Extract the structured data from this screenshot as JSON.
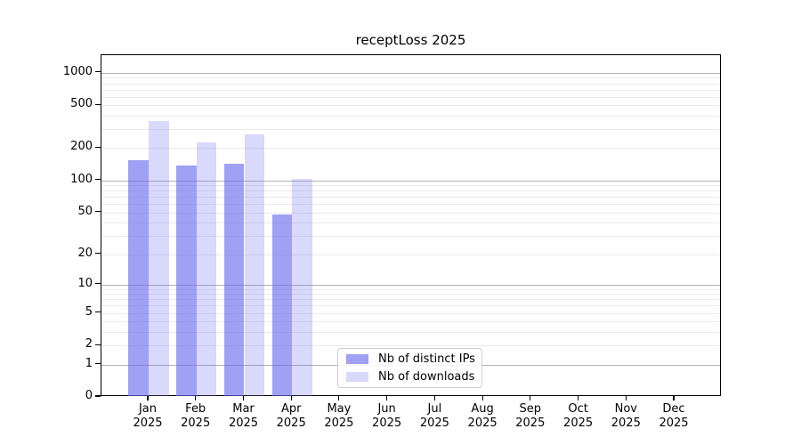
{
  "figure": {
    "title": "receptLoss 2025"
  },
  "colors": {
    "distinct_ips": "rgba(102,102,238,0.62)",
    "downloads": "rgba(102,102,238,0.25)",
    "axis": "#000000",
    "grid_major": "#b2b2b2",
    "grid_minor": "#eaeaea",
    "text": "#000000"
  },
  "legend": {
    "entries": [
      {
        "key": "distinct_ips",
        "label": "Nb of distinct IPs"
      },
      {
        "key": "downloads",
        "label": "Nb of downloads"
      }
    ]
  },
  "chart_data": {
    "type": "bar",
    "title": "receptLoss 2025",
    "categories": [
      "Jan",
      "Feb",
      "Mar",
      "Apr",
      "May",
      "Jun",
      "Jul",
      "Aug",
      "Sep",
      "Oct",
      "Nov",
      "Dec"
    ],
    "year_label": "2025",
    "series": [
      {
        "key": "distinct_ips",
        "name": "Nb of distinct IPs",
        "values": [
          155,
          138,
          144,
          48,
          0,
          0,
          0,
          0,
          0,
          0,
          0,
          0
        ]
      },
      {
        "key": "downloads",
        "name": "Nb of downloads",
        "values": [
          360,
          225,
          270,
          103,
          0,
          0,
          0,
          0,
          0,
          0,
          0,
          0
        ]
      }
    ],
    "y_ticks": [
      0,
      1,
      2,
      5,
      10,
      20,
      50,
      100,
      200,
      500,
      1000
    ],
    "y_scale": "log10(value+1)",
    "ylim": [
      0,
      1455
    ],
    "xlabel": "",
    "ylabel": "",
    "grid": true,
    "legend_position": "lower center"
  }
}
